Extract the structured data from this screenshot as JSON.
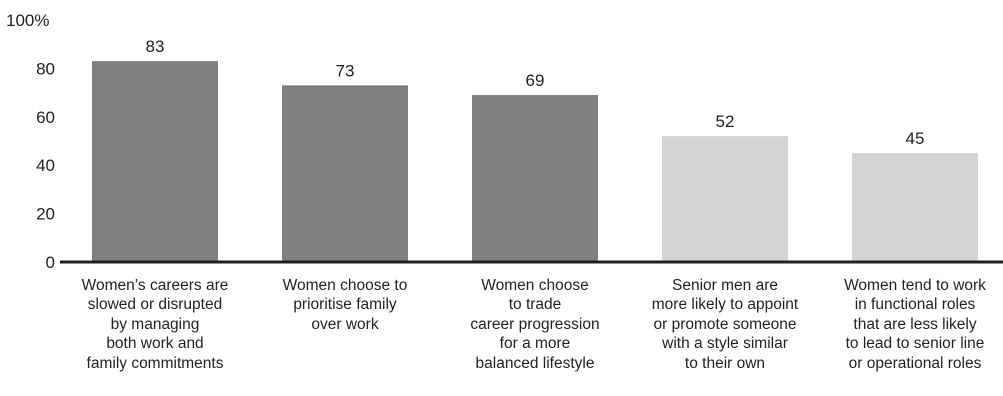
{
  "chart_data": {
    "type": "bar",
    "categories": [
      "Women’s careers are\nslowed or disrupted\nby managing\nboth work and\nfamily commitments",
      "Women choose to\nprioritise family\nover work",
      "Women choose\nto trade\ncareer progression\nfor a more\nbalanced lifestyle",
      "Senior men are\nmore likely to appoint\nor promote someone\nwith a style similar\nto their own",
      "Women tend to work\nin functional roles\nthat are less likely\nto lead to senior line\nor operational roles"
    ],
    "values": [
      83,
      73,
      69,
      52,
      45
    ],
    "bar_colors": [
      "#808083",
      "#808083",
      "#808083",
      "#d3d4d5",
      "#d3d4d5"
    ],
    "data_labels": [
      "83",
      "73",
      "69",
      "52",
      "45"
    ],
    "y_ticks": [
      0,
      20,
      40,
      60,
      80,
      100
    ],
    "y_tick_labels": [
      "0",
      "20",
      "40",
      "60",
      "80",
      "100%"
    ],
    "ylim": [
      0,
      100
    ],
    "grid": false,
    "axis_color": "#231f20"
  }
}
